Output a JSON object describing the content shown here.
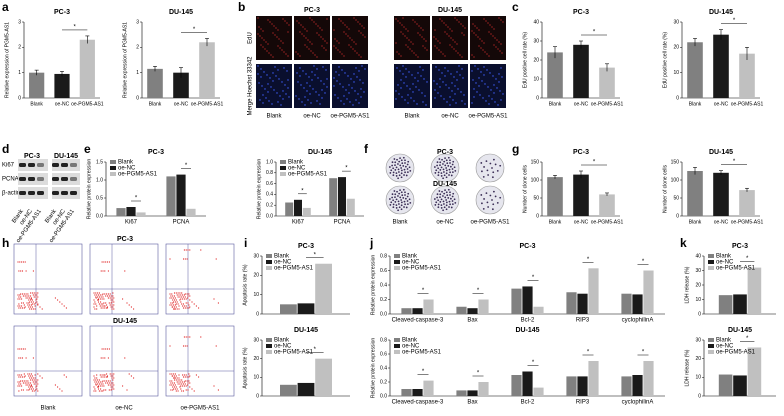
{
  "panel_letters": [
    "a",
    "b",
    "c",
    "d",
    "e",
    "f",
    "g",
    "h",
    "i",
    "j",
    "k"
  ],
  "edu_panel": {
    "cell_lines": [
      "PC-3",
      "DU-145"
    ],
    "rows": [
      "EdU",
      "Merge  Hoechst 33342"
    ],
    "groups": [
      "Blank",
      "oe-NC",
      "oe-PGM5-AS1"
    ]
  },
  "western_panel": {
    "cell_lines": [
      "PC-3",
      "DU-145"
    ],
    "proteins": [
      "Ki67",
      "PCNA",
      "β-actin"
    ],
    "lanes": [
      "Blank",
      "oe-NC",
      "oe-PGM5-AS1"
    ]
  },
  "colony_panel": {
    "cell_lines": [
      "PC-3",
      "DU-145"
    ],
    "groups": [
      "Blank",
      "oe-NC",
      "oe-PGM5-AS1"
    ]
  },
  "flow_panel": {
    "cell_lines": [
      "PC-3",
      "DU-145"
    ],
    "groups": [
      "Blank",
      "oe-NC",
      "oe-PGM5-AS1"
    ]
  },
  "chart_data": [
    {
      "type": "bar",
      "title": "PC-3",
      "ylabel": "Relative expression of PGM5-AS1",
      "categories": [
        "Blank",
        "oe-NC",
        "oe-PGM5-AS1"
      ],
      "values": [
        1.0,
        0.95,
        2.3
      ],
      "errors": [
        0.1,
        0.1,
        0.15
      ],
      "colors": [
        "#808080",
        "#1a1a1a",
        "#c0c0c0"
      ],
      "ylim": [
        0,
        3
      ],
      "yticks": [
        0,
        1,
        2,
        3
      ],
      "annotations": [
        "*"
      ]
    },
    {
      "type": "bar",
      "title": "DU-145",
      "ylabel": "Relative expression of PGM5-AS1",
      "categories": [
        "Blank",
        "oe-NC",
        "oe-PGM5-AS1"
      ],
      "values": [
        1.15,
        1.0,
        2.2
      ],
      "errors": [
        0.1,
        0.2,
        0.15
      ],
      "colors": [
        "#808080",
        "#1a1a1a",
        "#c0c0c0"
      ],
      "ylim": [
        0,
        3
      ],
      "yticks": [
        0,
        1,
        2,
        3
      ],
      "annotations": [
        "*"
      ]
    },
    {
      "type": "bar",
      "title": "PC-3",
      "ylabel": "EdU positive cell rate (%)",
      "categories": [
        "Blank",
        "oe-NC",
        "oe-PGM5-AS1"
      ],
      "values": [
        24,
        28,
        16
      ],
      "errors": [
        3,
        2,
        2
      ],
      "colors": [
        "#808080",
        "#1a1a1a",
        "#c0c0c0"
      ],
      "ylim": [
        0,
        40
      ],
      "yticks": [
        0,
        10,
        20,
        30,
        40
      ],
      "annotations": [
        "*"
      ]
    },
    {
      "type": "bar",
      "title": "DU-145",
      "ylabel": "EdU positive cell rate (%)",
      "categories": [
        "Blank",
        "oe-NC",
        "oe-PGM5-AS1"
      ],
      "values": [
        22,
        25,
        17.5
      ],
      "errors": [
        1.5,
        2,
        2.5
      ],
      "colors": [
        "#808080",
        "#1a1a1a",
        "#c0c0c0"
      ],
      "ylim": [
        0,
        30
      ],
      "yticks": [
        0,
        10,
        20,
        30
      ],
      "annotations": [
        "*"
      ]
    },
    {
      "type": "grouped-bar",
      "title": "PC-3",
      "ylabel": "Relative protein expression",
      "categories": [
        "Ki67",
        "PCNA"
      ],
      "series": [
        {
          "name": "Blank",
          "color": "#808080",
          "values": [
            0.22,
            1.1
          ]
        },
        {
          "name": "oe-NC",
          "color": "#1a1a1a",
          "values": [
            0.25,
            1.15
          ]
        },
        {
          "name": "oe-PGM5-AS1",
          "color": "#c0c0c0",
          "values": [
            0.1,
            0.2
          ]
        }
      ],
      "ylim": [
        0,
        1.5
      ],
      "yticks": [
        {
          "value": 0,
          "label": "0.0"
        },
        {
          "value": 0.5,
          "label": "0.5"
        },
        {
          "value": 1,
          "label": "1.0"
        },
        {
          "value": 1.5,
          "label": "1.5"
        }
      ],
      "annotations": [
        "*",
        "*"
      ]
    },
    {
      "type": "grouped-bar",
      "title": "DU-145",
      "ylabel": "Relative protein expression",
      "categories": [
        "Ki67",
        "PCNA"
      ],
      "series": [
        {
          "name": "Blank",
          "color": "#808080",
          "values": [
            0.25,
            0.7
          ]
        },
        {
          "name": "oe-NC",
          "color": "#1a1a1a",
          "values": [
            0.3,
            0.72
          ]
        },
        {
          "name": "oe-PGM5-AS1",
          "color": "#c0c0c0",
          "values": [
            0.15,
            0.32
          ]
        }
      ],
      "ylim": [
        0,
        1
      ],
      "yticks": [
        {
          "value": 0,
          "label": "0.0"
        },
        {
          "value": 0.2,
          "label": "0.2"
        },
        {
          "value": 0.4,
          "label": "0.4"
        },
        {
          "value": 0.6,
          "label": "0.6"
        },
        {
          "value": 0.8,
          "label": "0.8"
        },
        {
          "value": 1,
          "label": "1.0"
        }
      ],
      "annotations": [
        "*",
        "*"
      ]
    },
    {
      "type": "bar",
      "title": "PC-3",
      "ylabel": "Number of clone cells",
      "categories": [
        "Blank",
        "oe-NC",
        "oe-PGM5-AS1"
      ],
      "values": [
        108,
        115,
        60
      ],
      "errors": [
        5,
        10,
        4
      ],
      "colors": [
        "#808080",
        "#1a1a1a",
        "#c0c0c0"
      ],
      "ylim": [
        0,
        150
      ],
      "yticks": [
        0,
        50,
        100,
        150
      ],
      "annotations": [
        "*"
      ]
    },
    {
      "type": "bar",
      "title": "DU-145",
      "ylabel": "Number of clone cells",
      "categories": [
        "Blank",
        "oe-NC",
        "oe-PGM5-AS1"
      ],
      "values": [
        125,
        120,
        72
      ],
      "errors": [
        10,
        6,
        5
      ],
      "colors": [
        "#808080",
        "#1a1a1a",
        "#c0c0c0"
      ],
      "ylim": [
        0,
        150
      ],
      "yticks": [
        0,
        50,
        100,
        150
      ],
      "annotations": [
        "*"
      ]
    },
    {
      "type": "grouped-bar",
      "title": "PC-3",
      "ylabel": "Apoptosis rate (%)",
      "categories": [
        null
      ],
      "series": [
        {
          "name": "Blank",
          "color": "#808080",
          "values": [
            5
          ]
        },
        {
          "name": "oe-NC",
          "color": "#1a1a1a",
          "values": [
            5.5
          ]
        },
        {
          "name": "oe-PGM5-AS1",
          "color": "#c0c0c0",
          "values": [
            26
          ]
        }
      ],
      "ylim": [
        0,
        30
      ],
      "yticks": [
        0,
        10,
        20,
        30
      ],
      "annotations": [
        "*"
      ]
    },
    {
      "type": "grouped-bar",
      "title": "DU-145",
      "ylabel": "Apoptosis rate (%)",
      "categories": [
        null
      ],
      "series": [
        {
          "name": "Blank",
          "color": "#808080",
          "values": [
            6
          ]
        },
        {
          "name": "oe-NC",
          "color": "#1a1a1a",
          "values": [
            7
          ]
        },
        {
          "name": "oe-PGM5-AS1",
          "color": "#c0c0c0",
          "values": [
            20
          ]
        }
      ],
      "ylim": [
        0,
        30
      ],
      "yticks": [
        0,
        10,
        20,
        30
      ],
      "annotations": [
        "*"
      ]
    },
    {
      "type": "grouped-bar",
      "title": "PC-3",
      "ylabel": "Relative protein expression",
      "categories": [
        "Cleaved-caspase-3",
        "Bax",
        "Bcl-2",
        "RIP3",
        "cyclophilinA"
      ],
      "series": [
        {
          "name": "Blank",
          "color": "#808080",
          "values": [
            0.08,
            0.1,
            0.35,
            0.3,
            0.28
          ]
        },
        {
          "name": "oe-NC",
          "color": "#1a1a1a",
          "values": [
            0.08,
            0.08,
            0.38,
            0.28,
            0.27
          ]
        },
        {
          "name": "oe-PGM5-AS1",
          "color": "#c0c0c0",
          "values": [
            0.2,
            0.2,
            0.1,
            0.63,
            0.6
          ]
        }
      ],
      "ylim": [
        0,
        0.8
      ],
      "yticks": [
        {
          "value": 0,
          "label": "0.0"
        },
        {
          "value": 0.2,
          "label": "0.2"
        },
        {
          "value": 0.4,
          "label": "0.4"
        },
        {
          "value": 0.6,
          "label": "0.6"
        },
        {
          "value": 0.8,
          "label": "0.8"
        }
      ],
      "annotations": [
        "*",
        "*",
        "*",
        "*",
        "*"
      ]
    },
    {
      "type": "grouped-bar",
      "title": "DU-145",
      "ylabel": "Relative protein expression",
      "categories": [
        "Cleaved-caspase-3",
        "Bax",
        "Bcl-2",
        "RIP3",
        "cyclophilinA"
      ],
      "series": [
        {
          "name": "Blank",
          "color": "#808080",
          "values": [
            0.1,
            0.08,
            0.3,
            0.28,
            0.28
          ]
        },
        {
          "name": "oe-NC",
          "color": "#1a1a1a",
          "values": [
            0.1,
            0.08,
            0.35,
            0.28,
            0.3
          ]
        },
        {
          "name": "oe-PGM5-AS1",
          "color": "#c0c0c0",
          "values": [
            0.22,
            0.2,
            0.12,
            0.5,
            0.5
          ]
        }
      ],
      "ylim": [
        0,
        0.8
      ],
      "yticks": [
        {
          "value": 0,
          "label": "0.0"
        },
        {
          "value": 0.2,
          "label": "0.2"
        },
        {
          "value": 0.4,
          "label": "0.4"
        },
        {
          "value": 0.6,
          "label": "0.6"
        },
        {
          "value": 0.8,
          "label": "0.8"
        }
      ],
      "annotations": [
        "*",
        "*",
        "*",
        "*",
        "*"
      ]
    },
    {
      "type": "grouped-bar",
      "title": "PC-3",
      "ylabel": "LDH release (%)",
      "categories": [
        null
      ],
      "series": [
        {
          "name": "Blank",
          "color": "#808080",
          "values": [
            13
          ]
        },
        {
          "name": "oe-NC",
          "color": "#1a1a1a",
          "values": [
            13.5
          ]
        },
        {
          "name": "oe-PGM5-AS1",
          "color": "#c0c0c0",
          "values": [
            32
          ]
        }
      ],
      "ylim": [
        0,
        40
      ],
      "yticks": [
        0,
        10,
        20,
        30,
        40
      ],
      "annotations": [
        "*"
      ]
    },
    {
      "type": "grouped-bar",
      "title": "DU-145",
      "ylabel": "LDH release (%)",
      "categories": [
        null
      ],
      "series": [
        {
          "name": "Blank",
          "color": "#808080",
          "values": [
            11.5
          ]
        },
        {
          "name": "oe-NC",
          "color": "#1a1a1a",
          "values": [
            11
          ]
        },
        {
          "name": "oe-PGM5-AS1",
          "color": "#c0c0c0",
          "values": [
            26
          ]
        }
      ],
      "ylim": [
        0,
        30
      ],
      "yticks": [
        0,
        10,
        20,
        30
      ],
      "annotations": [
        "*"
      ]
    }
  ]
}
